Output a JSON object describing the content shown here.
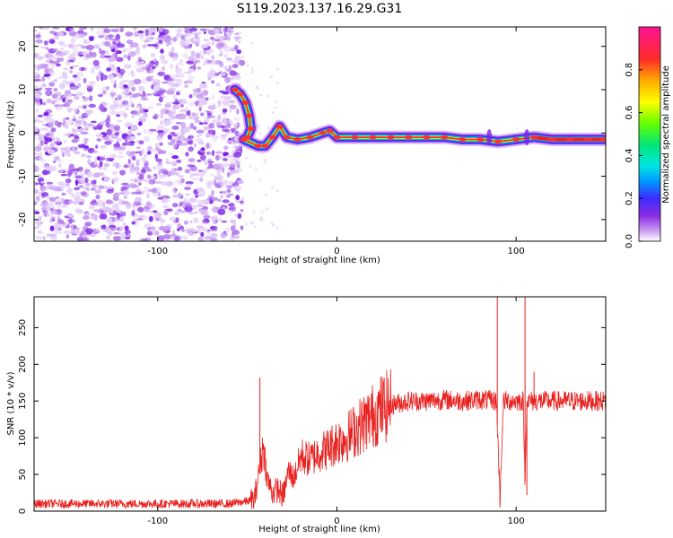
{
  "figure_title": "S119.2023.137.16.29.G31",
  "colors": {
    "snr_line": "#e8201e",
    "noise_purple": "#7a1fe8",
    "axis": "#000000",
    "colormap": [
      "#ffffff",
      "#c79bf0",
      "#8a2be2",
      "#3b2cff",
      "#0099ff",
      "#00e5e5",
      "#00e676",
      "#66ff00",
      "#ffff00",
      "#ffaa00",
      "#ff2a2a",
      "#ff1493"
    ]
  },
  "chart_data": [
    {
      "type": "heatmap",
      "title": "",
      "xlabel": "Height of straight line (km)",
      "ylabel": "Frequency (Hz)",
      "xlim": [
        -169,
        150
      ],
      "ylim": [
        -25,
        24.5
      ],
      "xticks": [
        -100,
        0,
        100
      ],
      "xtick_labels": [
        "-100",
        "0",
        "100"
      ],
      "yticks": [
        -20,
        -10,
        0,
        10,
        20
      ],
      "ytick_labels": [
        "-20",
        "-10",
        "0",
        "10",
        "20"
      ],
      "colorbar": {
        "label": "Normalized spectral amplitude",
        "ticks": [
          0.0,
          0.2,
          0.4,
          0.6,
          0.8
        ],
        "tick_labels": [
          "0.0",
          "0.2",
          "0.4",
          "0.6",
          "0.8"
        ],
        "range": [
          0,
          1
        ]
      },
      "noise_region_x": [
        -169,
        -55
      ],
      "signal_track": [
        {
          "x": -57,
          "y": 10
        },
        {
          "x": -54,
          "y": 9
        },
        {
          "x": -51,
          "y": 7
        },
        {
          "x": -49,
          "y": 4
        },
        {
          "x": -48,
          "y": 1
        },
        {
          "x": -50,
          "y": -1
        },
        {
          "x": -52,
          "y": -1.5
        },
        {
          "x": -44,
          "y": -3
        },
        {
          "x": -40,
          "y": -3
        },
        {
          "x": -36,
          "y": -1
        },
        {
          "x": -32,
          "y": 1.5
        },
        {
          "x": -28,
          "y": -1
        },
        {
          "x": -22,
          "y": -1.5
        },
        {
          "x": -15,
          "y": -1
        },
        {
          "x": -8,
          "y": 0
        },
        {
          "x": -4,
          "y": 0.5
        },
        {
          "x": 0,
          "y": -1
        },
        {
          "x": 10,
          "y": -1
        },
        {
          "x": 20,
          "y": -1
        },
        {
          "x": 30,
          "y": -1
        },
        {
          "x": 40,
          "y": -1
        },
        {
          "x": 50,
          "y": -1
        },
        {
          "x": 60,
          "y": -1
        },
        {
          "x": 70,
          "y": -1.5
        },
        {
          "x": 80,
          "y": -1.5
        },
        {
          "x": 90,
          "y": -2
        },
        {
          "x": 100,
          "y": -1.5
        },
        {
          "x": 110,
          "y": -1
        },
        {
          "x": 120,
          "y": -1.5
        },
        {
          "x": 130,
          "y": -1.5
        },
        {
          "x": 140,
          "y": -1.5
        },
        {
          "x": 149,
          "y": -1.5
        }
      ]
    },
    {
      "type": "line",
      "title": "",
      "xlabel": "Height of straight line (km)",
      "ylabel": "SNR (10 * v/v)",
      "xlim": [
        -169,
        150
      ],
      "ylim": [
        0,
        292
      ],
      "xticks": [
        -100,
        0,
        100
      ],
      "xtick_labels": [
        "-100",
        "0",
        "100"
      ],
      "yticks": [
        0,
        50,
        100,
        150,
        200,
        250
      ],
      "ytick_labels": [
        "0",
        "50",
        "100",
        "150",
        "200",
        "250"
      ],
      "envelope": {
        "x": [
          -169,
          -60,
          -46,
          -43,
          -41,
          -39,
          -36,
          -33,
          -30,
          -27,
          -24,
          -20,
          -15,
          -10,
          -5,
          0,
          5,
          10,
          15,
          20,
          25,
          30,
          40,
          50,
          60,
          70,
          80,
          89,
          91,
          93,
          95,
          100,
          104,
          105,
          106,
          108,
          112,
          120,
          130,
          140,
          150
        ],
        "y": [
          10,
          10,
          15,
          60,
          90,
          45,
          25,
          30,
          20,
          55,
          45,
          75,
          70,
          80,
          85,
          95,
          100,
          110,
          120,
          130,
          140,
          145,
          150,
          150,
          152,
          150,
          152,
          150,
          20,
          150,
          150,
          150,
          150,
          40,
          150,
          150,
          150,
          150,
          150,
          150,
          150
        ]
      },
      "spikes": [
        {
          "x": -43,
          "y": 182
        },
        {
          "x": 89.5,
          "y": 292
        },
        {
          "x": 91,
          "y": 5
        },
        {
          "x": 105,
          "y": 292
        },
        {
          "x": 106,
          "y": 22
        },
        {
          "x": 110,
          "y": 190
        }
      ]
    }
  ]
}
